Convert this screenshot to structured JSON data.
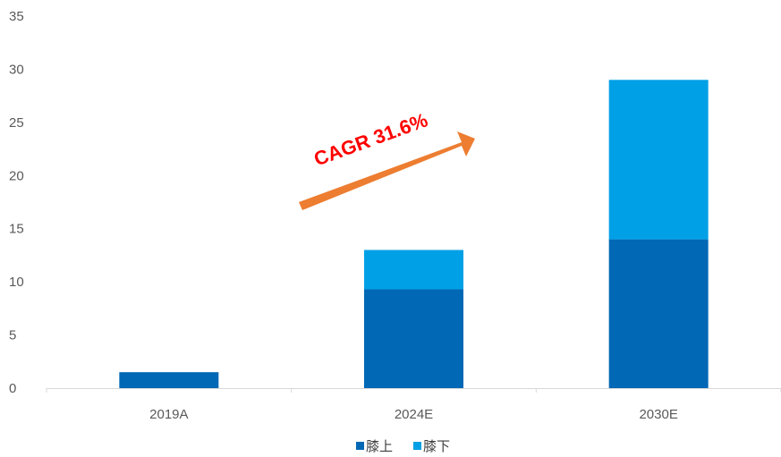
{
  "chart_data": {
    "type": "bar",
    "stacked": true,
    "categories": [
      "2019A",
      "2024E",
      "2030E"
    ],
    "series": [
      {
        "name": "膝上",
        "values": [
          1.5,
          9.3,
          14.0
        ],
        "color": "#0068b5"
      },
      {
        "name": "膝下",
        "values": [
          0.0,
          3.7,
          15.0
        ],
        "color": "#00a0e6"
      }
    ],
    "ylim": [
      0,
      35
    ],
    "yticks": [
      0,
      5,
      10,
      15,
      20,
      25,
      30,
      35
    ],
    "grid": false,
    "legend_position": "bottom",
    "annotation": {
      "text": "CAGR 31.6%",
      "arrow_color": "#ed7d31",
      "text_color": "#ff0000"
    }
  }
}
